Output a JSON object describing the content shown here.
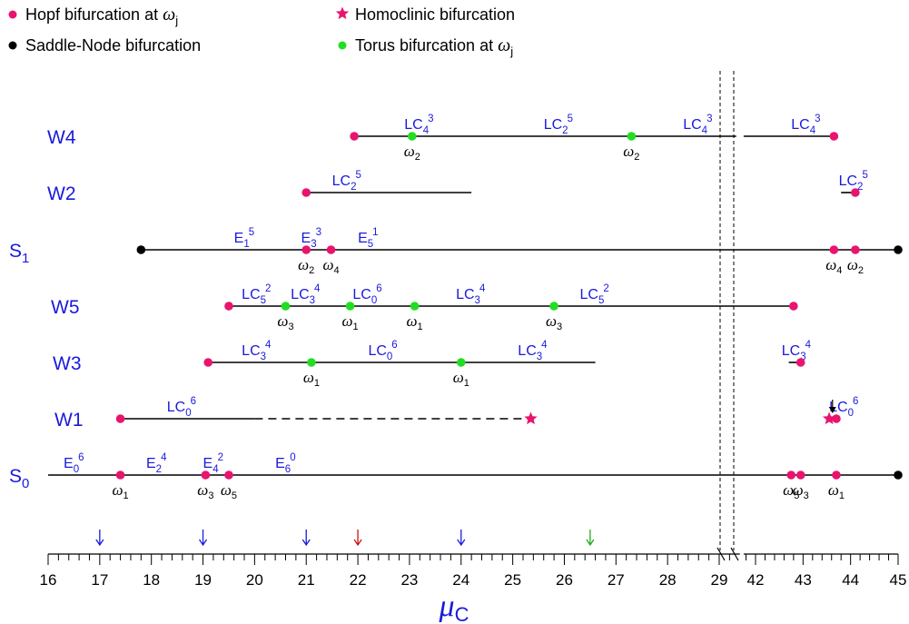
{
  "legend": {
    "hopf": "Hopf bifurcation at ω",
    "hopf_sub": "j",
    "homoclinic": "Homoclinic bifurcation",
    "saddle_node": "Saddle-Node bifurcation",
    "torus": "Torus bifurcation at ω",
    "torus_sub": "j"
  },
  "colors": {
    "hopf": "#e8146e",
    "homoclinic": "#e8146e",
    "saddle_node": "#000000",
    "torus": "#22dd22",
    "label": "#1a1adc",
    "arrow_blue": "#1a1adc",
    "arrow_red": "#cc1111",
    "arrow_green": "#22aa22"
  },
  "axis": {
    "label": "μ",
    "label_sub": "C",
    "ticks_left": [
      "16",
      "17",
      "18",
      "19",
      "20",
      "21",
      "22",
      "23",
      "24",
      "25",
      "26",
      "27",
      "28",
      "29"
    ],
    "ticks_right": [
      "42",
      "43",
      "44",
      "45"
    ],
    "break_between": [
      29.3,
      41.7
    ],
    "markers": [
      {
        "x": 17,
        "color": "blue"
      },
      {
        "x": 19,
        "color": "blue"
      },
      {
        "x": 21,
        "color": "blue"
      },
      {
        "x": 22,
        "color": "red"
      },
      {
        "x": 24,
        "color": "blue"
      },
      {
        "x": 26.5,
        "color": "green"
      }
    ]
  },
  "rows": [
    {
      "id": "W4",
      "label": "W4",
      "sub": "",
      "segments": [
        [
          21.93,
          29.33
        ],
        [
          41.75,
          43.65
        ]
      ],
      "dashed": [],
      "points": [
        {
          "type": "hopf",
          "x": 21.93
        },
        {
          "type": "torus",
          "x": 23.05,
          "w": "2"
        },
        {
          "type": "torus",
          "x": 27.3,
          "w": "2"
        },
        {
          "type": "hopf",
          "x": 43.65
        }
      ],
      "labels": [
        {
          "text": "LC",
          "sub": "4",
          "sup": "3",
          "x": 22.9
        },
        {
          "text": "LC",
          "sub": "2",
          "sup": "5",
          "x": 25.6
        },
        {
          "text": "LC",
          "sub": "4",
          "sup": "3",
          "x": 28.3
        },
        {
          "text": "LC",
          "sub": "4",
          "sup": "3",
          "x": 42.75
        }
      ]
    },
    {
      "id": "W2",
      "label": "W2",
      "sub": "",
      "segments": [
        [
          21.0,
          24.2
        ],
        [
          43.8,
          44.1
        ]
      ],
      "dashed": [],
      "points": [
        {
          "type": "hopf",
          "x": 21.0
        },
        {
          "type": "hopf",
          "x": 44.1
        }
      ],
      "labels": [
        {
          "text": "LC",
          "sub": "2",
          "sup": "5",
          "x": 21.5
        },
        {
          "text": "LC",
          "sub": "2",
          "sup": "5",
          "x": 43.75
        }
      ]
    },
    {
      "id": "S1",
      "label": "S",
      "sub": "1",
      "segments": [
        [
          17.8,
          45.0
        ]
      ],
      "dashed": [],
      "points": [
        {
          "type": "saddle",
          "x": 17.8
        },
        {
          "type": "hopf",
          "x": 21.0,
          "w": "2"
        },
        {
          "type": "hopf",
          "x": 21.48,
          "w": "4"
        },
        {
          "type": "hopf",
          "x": 43.65,
          "w": "4"
        },
        {
          "type": "hopf",
          "x": 44.1,
          "w": "2"
        },
        {
          "type": "saddle",
          "x": 45.0
        }
      ],
      "labels": [
        {
          "text": "E",
          "sub": "1",
          "sup": "5",
          "x": 19.6
        },
        {
          "text": "E",
          "sub": "3",
          "sup": "3",
          "x": 20.9
        },
        {
          "text": "E",
          "sub": "5",
          "sup": "1",
          "x": 22.0
        }
      ]
    },
    {
      "id": "W5",
      "label": "W5",
      "sub": "",
      "segments": [
        [
          19.5,
          42.8
        ]
      ],
      "dashed": [],
      "points": [
        {
          "type": "hopf",
          "x": 19.5
        },
        {
          "type": "torus",
          "x": 20.6,
          "w": "3"
        },
        {
          "type": "torus",
          "x": 21.85,
          "w": "1"
        },
        {
          "type": "torus",
          "x": 23.1,
          "w": "1"
        },
        {
          "type": "torus",
          "x": 25.8,
          "w": "3"
        },
        {
          "type": "hopf",
          "x": 42.8
        }
      ],
      "labels": [
        {
          "text": "LC",
          "sub": "5",
          "sup": "2",
          "x": 19.75
        },
        {
          "text": "LC",
          "sub": "3",
          "sup": "4",
          "x": 20.7
        },
        {
          "text": "LC",
          "sub": "0",
          "sup": "6",
          "x": 21.9
        },
        {
          "text": "LC",
          "sub": "3",
          "sup": "4",
          "x": 23.9
        },
        {
          "text": "LC",
          "sub": "5",
          "sup": "2",
          "x": 26.3
        }
      ]
    },
    {
      "id": "W3",
      "label": "W3",
      "sub": "",
      "segments": [
        [
          19.1,
          26.6
        ],
        [
          42.7,
          42.95
        ]
      ],
      "dashed": [],
      "points": [
        {
          "type": "hopf",
          "x": 19.1
        },
        {
          "type": "torus",
          "x": 21.1,
          "w": "1"
        },
        {
          "type": "torus",
          "x": 24.0,
          "w": "1"
        },
        {
          "type": "hopf",
          "x": 42.95
        }
      ],
      "labels": [
        {
          "text": "LC",
          "sub": "3",
          "sup": "4",
          "x": 19.75
        },
        {
          "text": "LC",
          "sub": "0",
          "sup": "6",
          "x": 22.2
        },
        {
          "text": "LC",
          "sub": "3",
          "sup": "4",
          "x": 25.1
        },
        {
          "text": "LC",
          "sub": "3",
          "sup": "4",
          "x": 42.55
        }
      ]
    },
    {
      "id": "W1",
      "label": "W1",
      "sub": "",
      "segments": [
        [
          17.4,
          20.0
        ]
      ],
      "dashed": [
        [
          20.0,
          25.3
        ]
      ],
      "points": [
        {
          "type": "hopf",
          "x": 17.4
        },
        {
          "type": "homoclinic",
          "x": 25.35
        },
        {
          "type": "homoclinic",
          "x": 43.55
        },
        {
          "type": "hopf",
          "x": 43.7
        }
      ],
      "labels": [
        {
          "text": "LC",
          "sub": "0",
          "sup": "6",
          "x": 18.3
        },
        {
          "text": "LC",
          "sub": "0",
          "sup": "6",
          "x": 43.55
        }
      ]
    },
    {
      "id": "S0",
      "label": "S",
      "sub": "0",
      "segments": [
        [
          16.0,
          45.0
        ]
      ],
      "dashed": [],
      "points": [
        {
          "type": "hopf",
          "x": 17.4,
          "w": "1"
        },
        {
          "type": "hopf",
          "x": 19.05,
          "w": "3"
        },
        {
          "type": "hopf",
          "x": 19.5,
          "w": "5"
        },
        {
          "type": "hopf",
          "x": 42.75,
          "w": "5"
        },
        {
          "type": "hopf",
          "x": 42.95,
          "w": "3"
        },
        {
          "type": "hopf",
          "x": 43.7,
          "w": "1"
        },
        {
          "type": "saddle",
          "x": 45.0
        }
      ],
      "labels": [
        {
          "text": "E",
          "sub": "0",
          "sup": "6",
          "x": 16.3
        },
        {
          "text": "E",
          "sub": "2",
          "sup": "4",
          "x": 17.9
        },
        {
          "text": "E",
          "sub": "4",
          "sup": "2",
          "x": 19.0
        },
        {
          "text": "E",
          "sub": "6",
          "sup": "0",
          "x": 20.4
        }
      ]
    }
  ]
}
